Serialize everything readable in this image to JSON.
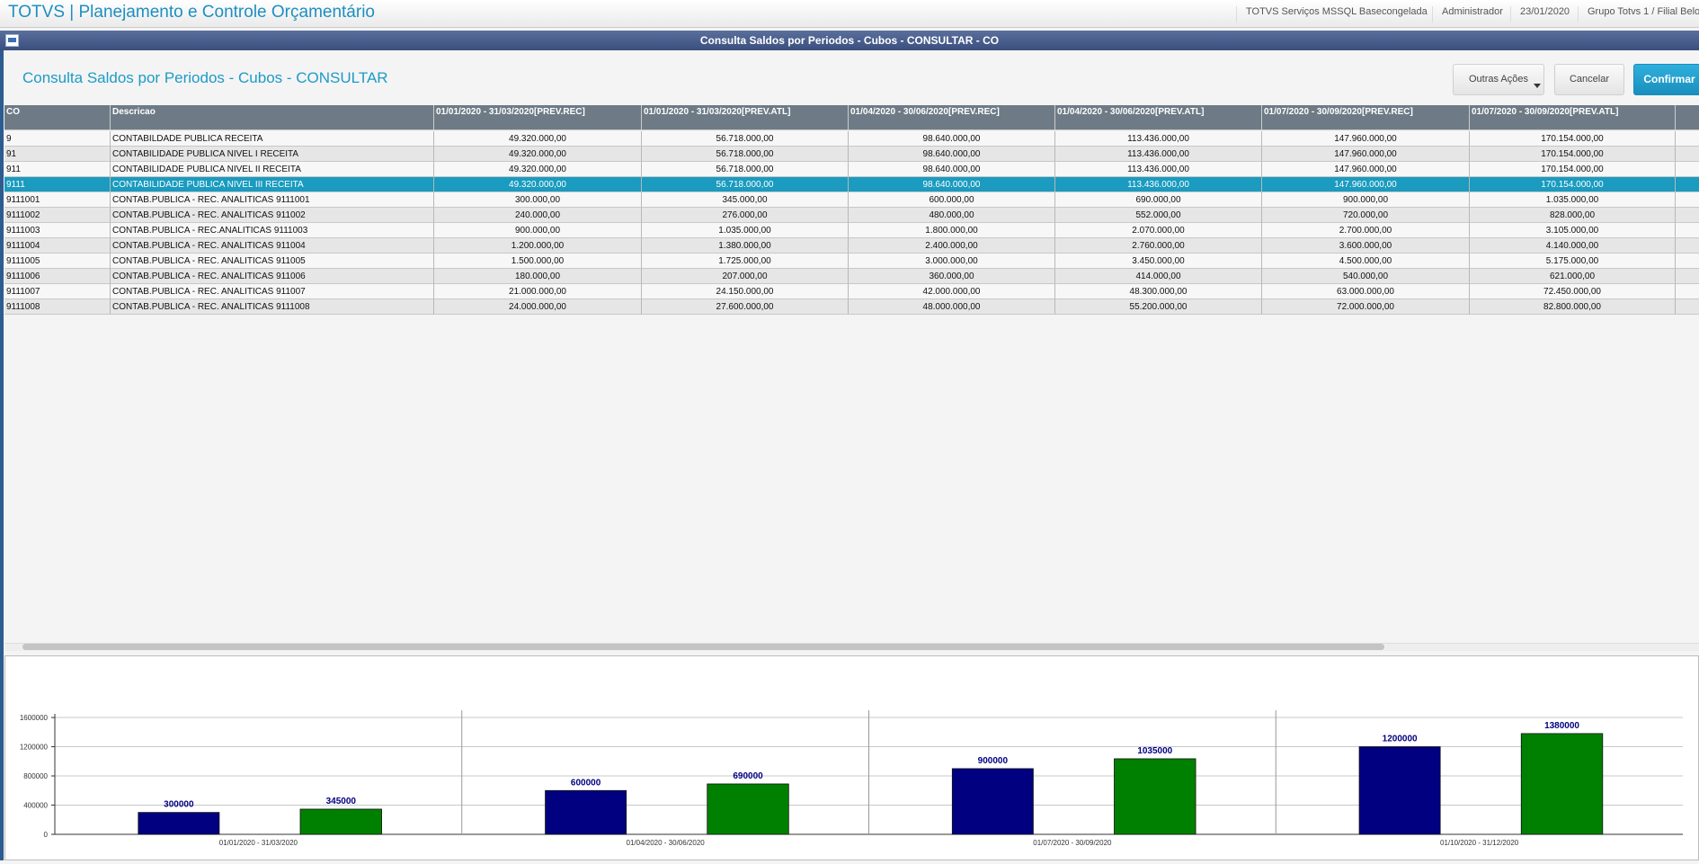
{
  "header": {
    "title": "TOTVS | Planejamento e Controle Orçamentário",
    "items": [
      "TOTVS Serviços MSSQL Basecongelada",
      "Administrador",
      "23/01/2020",
      "Grupo Totvs 1 / Filial Belo"
    ]
  },
  "window_title": "Consulta Saldos por Periodos - Cubos - CONSULTAR - CO",
  "page_title": "Consulta Saldos por Periodos - Cubos - CONSULTAR",
  "buttons": [
    "Outras Ações",
    "Cancelar",
    "Confirmar"
  ],
  "table": {
    "columns": [
      "CO",
      "Descricao",
      "01/01/2020 - 31/03/2020[PREV.REC]",
      "01/01/2020 - 31/03/2020[PREV.ATL]",
      "01/04/2020 - 30/06/2020[PREV.REC]",
      "01/04/2020 - 30/06/2020[PREV.ATL]",
      "01/07/2020 - 30/09/2020[PREV.REC]",
      "01/07/2020 - 30/09/2020[PREV.ATL]"
    ],
    "selected_row": 3,
    "rows": [
      [
        "9",
        "CONTABILDADE PUBLICA RECEITA",
        "49.320.000,00",
        "56.718.000,00",
        "98.640.000,00",
        "113.436.000,00",
        "147.960.000,00",
        "170.154.000,00"
      ],
      [
        "91",
        "CONTABILIDADE PUBLICA NIVEL I RECEITA",
        "49.320.000,00",
        "56.718.000,00",
        "98.640.000,00",
        "113.436.000,00",
        "147.960.000,00",
        "170.154.000,00"
      ],
      [
        "911",
        "CONTABILIDADE PUBLICA NIVEL II RECEITA",
        "49.320.000,00",
        "56.718.000,00",
        "98.640.000,00",
        "113.436.000,00",
        "147.960.000,00",
        "170.154.000,00"
      ],
      [
        "9111",
        "CONTABILIDADE PUBLICA NIVEL III RECEITA",
        "49.320.000,00",
        "56.718.000,00",
        "98.640.000,00",
        "113.436.000,00",
        "147.960.000,00",
        "170.154.000,00"
      ],
      [
        "9111001",
        "CONTAB.PUBLICA - REC. ANALITICAS 9111001",
        "300.000,00",
        "345.000,00",
        "600.000,00",
        "690.000,00",
        "900.000,00",
        "1.035.000,00"
      ],
      [
        "9111002",
        "CONTAB.PUBLICA - REC. ANALITICAS 911002",
        "240.000,00",
        "276.000,00",
        "480.000,00",
        "552.000,00",
        "720.000,00",
        "828.000,00"
      ],
      [
        "9111003",
        "CONTAB.PUBLICA - REC.ANALITICAS 9111003",
        "900.000,00",
        "1.035.000,00",
        "1.800.000,00",
        "2.070.000,00",
        "2.700.000,00",
        "3.105.000,00"
      ],
      [
        "9111004",
        "CONTAB.PUBLICA - REC. ANALITICAS 911004",
        "1.200.000,00",
        "1.380.000,00",
        "2.400.000,00",
        "2.760.000,00",
        "3.600.000,00",
        "4.140.000,00"
      ],
      [
        "9111005",
        "CONTAB.PUBLICA - REC. ANALITICAS 911005",
        "1.500.000,00",
        "1.725.000,00",
        "3.000.000,00",
        "3.450.000,00",
        "4.500.000,00",
        "5.175.000,00"
      ],
      [
        "9111006",
        "CONTAB.PUBLICA - REC. ANALITICAS 911006",
        "180.000,00",
        "207.000,00",
        "360.000,00",
        "414.000,00",
        "540.000,00",
        "621.000,00"
      ],
      [
        "9111007",
        "CONTAB.PUBLICA - REC. ANALITICAS 911007",
        "21.000.000,00",
        "24.150.000,00",
        "42.000.000,00",
        "48.300.000,00",
        "63.000.000,00",
        "72.450.000,00"
      ],
      [
        "9111008",
        "CONTAB.PUBLICA - REC. ANALITICAS 9111008",
        "24.000.000,00",
        "27.600.000,00",
        "48.000.000,00",
        "55.200.000,00",
        "72.000.000,00",
        "82.800.000,00"
      ]
    ]
  },
  "chart_data": {
    "type": "bar",
    "categories": [
      "01/01/2020 - 31/03/2020",
      "01/04/2020 - 30/06/2020",
      "01/07/2020 - 30/09/2020",
      "01/10/2020 - 31/12/2020"
    ],
    "series": [
      {
        "color": "#000080",
        "values": [
          300000,
          600000,
          900000,
          1200000
        ]
      },
      {
        "color": "#008000",
        "values": [
          345000,
          690000,
          1035000,
          1380000
        ]
      }
    ],
    "label_color": "#000080",
    "ylim": [
      0,
      1650000
    ],
    "yticks": [
      0,
      400000,
      800000,
      1200000,
      1600000
    ],
    "grid": true
  }
}
